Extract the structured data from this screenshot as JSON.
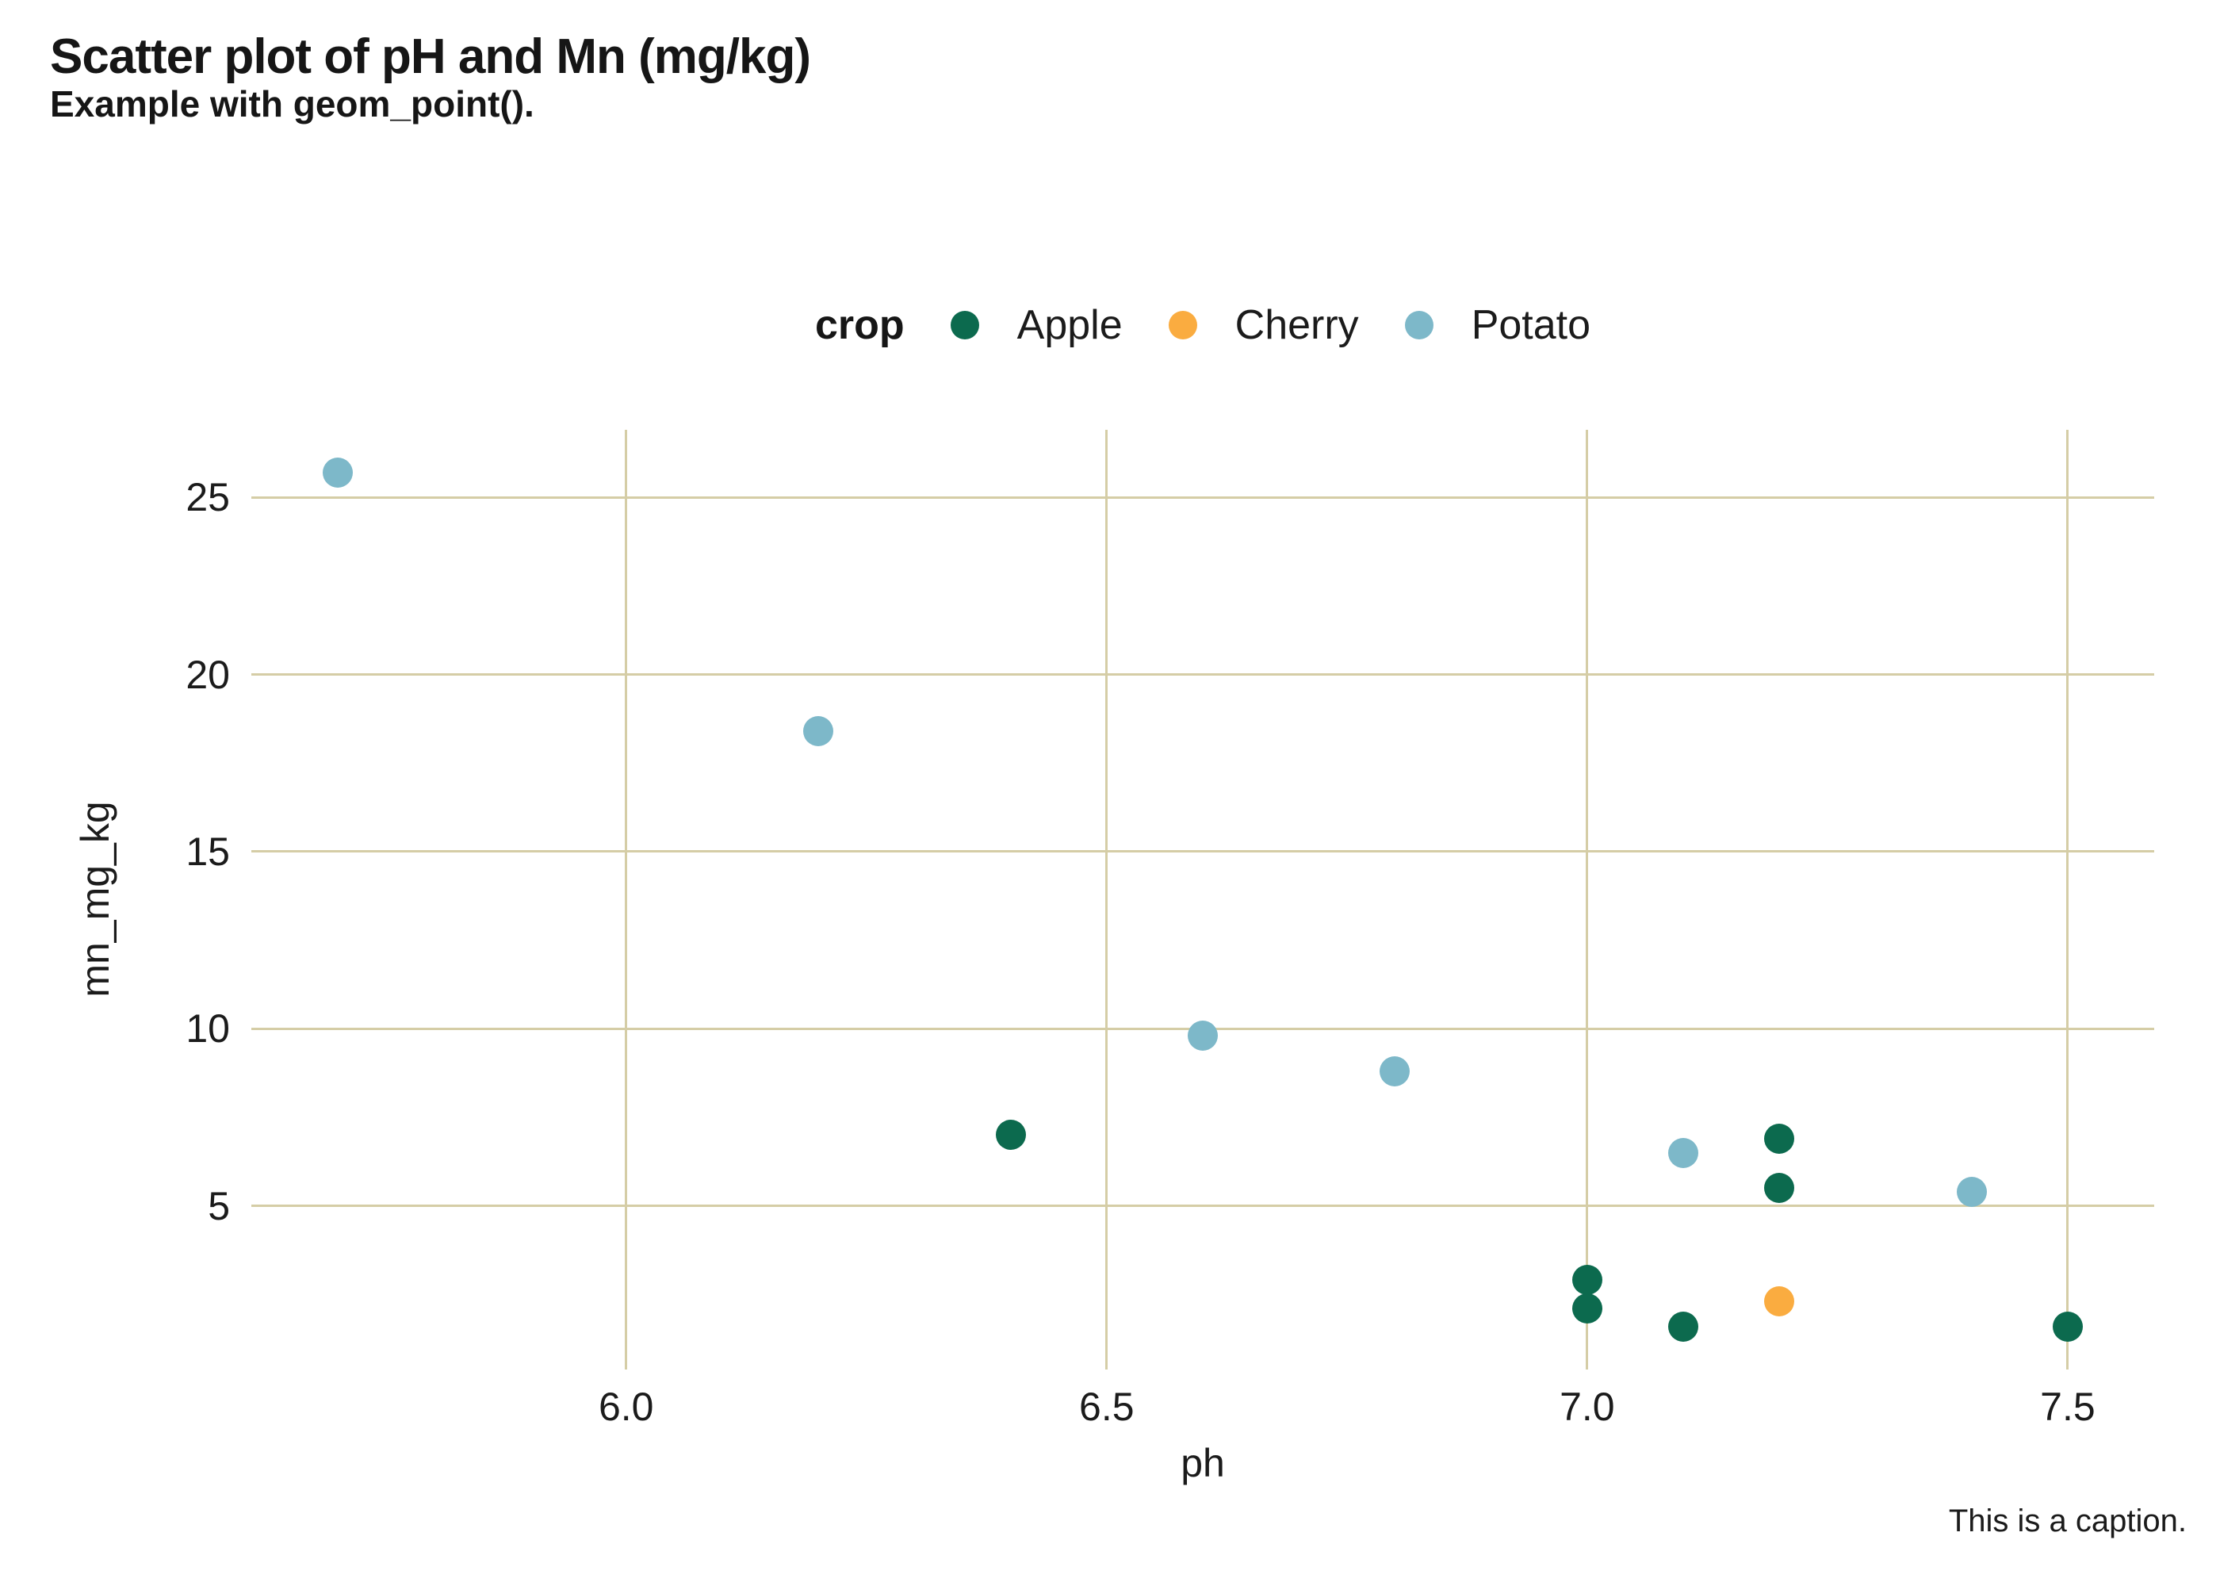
{
  "title": "Scatter plot of pH and Mn (mg/kg)",
  "subtitle": "Example with geom_point().",
  "caption": "This is a caption.",
  "legend": {
    "title": "crop",
    "items": [
      {
        "label": "Apple",
        "color": "#0c6a4e"
      },
      {
        "label": "Cherry",
        "color": "#faac40"
      },
      {
        "label": "Potato",
        "color": "#7db8c9"
      }
    ]
  },
  "colors": {
    "gridline": "#d5cda6",
    "text": "#1b1b1b",
    "apple": "#0c6a4e",
    "cherry": "#faac40",
    "potato": "#7db8c9"
  },
  "chart_data": {
    "type": "scatter",
    "title": "Scatter plot of pH and Mn (mg/kg)",
    "subtitle": "Example with geom_point().",
    "xlabel": "ph",
    "ylabel": "mn_mg_kg",
    "legend_title": "crop",
    "legend_position": "top-center",
    "grid": true,
    "xlim": [
      5.61,
      7.59
    ],
    "ylim": [
      0.38,
      26.91
    ],
    "x_ticks": [
      6.0,
      6.5,
      7.0,
      7.5
    ],
    "x_tick_labels": [
      "6.0",
      "6.5",
      "7.0",
      "7.5"
    ],
    "y_ticks": [
      5,
      10,
      15,
      20,
      25
    ],
    "y_tick_labels": [
      "5",
      "10",
      "15",
      "20",
      "25"
    ],
    "series": [
      {
        "name": "Apple",
        "color": "#0c6a4e",
        "points": [
          [
            6.4,
            7.0
          ],
          [
            7.0,
            2.9
          ],
          [
            7.0,
            2.1
          ],
          [
            7.1,
            1.6
          ],
          [
            7.2,
            6.9
          ],
          [
            7.2,
            5.5
          ],
          [
            7.5,
            1.6
          ]
        ]
      },
      {
        "name": "Cherry",
        "color": "#faac40",
        "points": [
          [
            7.2,
            2.3
          ]
        ]
      },
      {
        "name": "Potato",
        "color": "#7db8c9",
        "points": [
          [
            5.7,
            25.7
          ],
          [
            6.2,
            18.4
          ],
          [
            6.6,
            9.8
          ],
          [
            6.8,
            8.8
          ],
          [
            7.1,
            6.5
          ],
          [
            7.4,
            5.4
          ]
        ]
      }
    ]
  }
}
